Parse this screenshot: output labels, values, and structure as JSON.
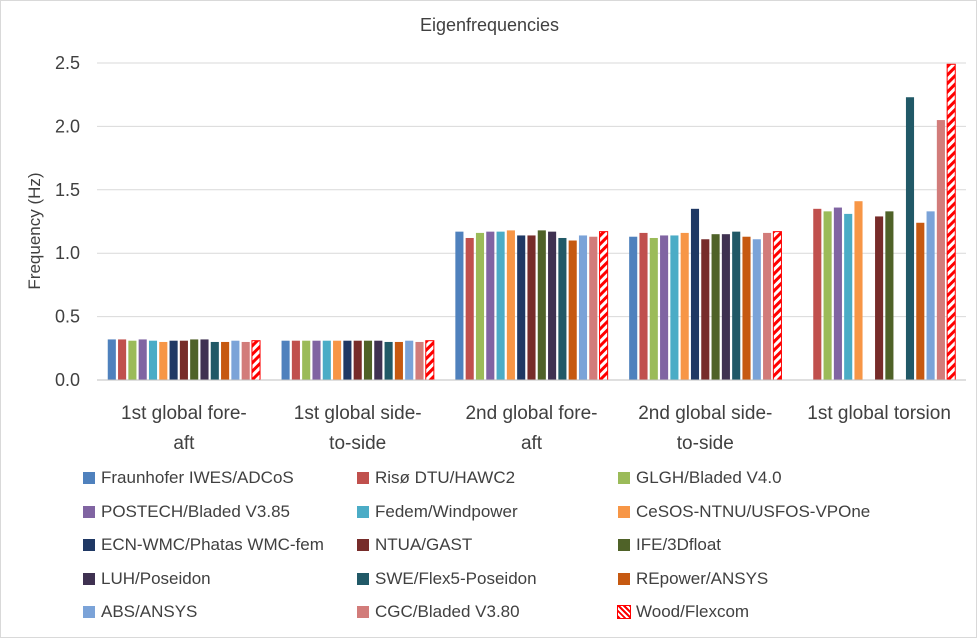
{
  "chart_data": {
    "type": "bar",
    "title": "Eigenfrequencies",
    "ylabel": "Frequency (Hz)",
    "xlabel": "",
    "ylim": [
      0,
      2.5
    ],
    "yticks": [
      "0.0",
      "0.5",
      "1.0",
      "1.5",
      "2.0",
      "2.5"
    ],
    "grid": true,
    "legend_position": "bottom",
    "categories": [
      [
        "1st global fore-",
        "aft"
      ],
      [
        "1st global side-",
        "to-side"
      ],
      [
        "2nd global fore-",
        "aft"
      ],
      [
        "2nd global side-",
        "to-side"
      ],
      [
        "1st global torsion"
      ]
    ],
    "series": [
      {
        "name": "Fraunhofer IWES/ADCoS",
        "color": "#4F81BD",
        "values": [
          0.32,
          0.31,
          1.17,
          1.13,
          null
        ]
      },
      {
        "name": "Risø DTU/HAWC2",
        "color": "#C0504D",
        "values": [
          0.32,
          0.31,
          1.12,
          1.16,
          1.35
        ]
      },
      {
        "name": "GLGH/Bladed V4.0",
        "color": "#9BBB59",
        "values": [
          0.31,
          0.31,
          1.16,
          1.12,
          1.33
        ]
      },
      {
        "name": "POSTECH/Bladed V3.85",
        "color": "#8064A2",
        "values": [
          0.32,
          0.31,
          1.17,
          1.14,
          1.36
        ]
      },
      {
        "name": "Fedem/Windpower",
        "color": "#4BACC6",
        "values": [
          0.31,
          0.31,
          1.17,
          1.14,
          1.31
        ]
      },
      {
        "name": "CeSOS-NTNU/USFOS-VPOne",
        "color": "#F79646",
        "values": [
          0.3,
          0.31,
          1.18,
          1.16,
          1.41
        ]
      },
      {
        "name": "ECN-WMC/Phatas WMC-fem",
        "color": "#1F3864",
        "values": [
          0.31,
          0.31,
          1.14,
          1.35,
          null
        ]
      },
      {
        "name": "NTUA/GAST",
        "color": "#772C2A",
        "values": [
          0.31,
          0.31,
          1.14,
          1.11,
          1.29
        ]
      },
      {
        "name": "IFE/3Dfloat",
        "color": "#4F6228",
        "values": [
          0.32,
          0.31,
          1.18,
          1.15,
          1.33
        ]
      },
      {
        "name": "LUH/Poseidon",
        "color": "#3F3151",
        "values": [
          0.32,
          0.31,
          1.17,
          1.15,
          null
        ]
      },
      {
        "name": "SWE/Flex5-Poseidon",
        "color": "#215967",
        "values": [
          0.3,
          0.3,
          1.12,
          1.17,
          2.23
        ]
      },
      {
        "name": "REpower/ANSYS",
        "color": "#C65911",
        "values": [
          0.3,
          0.3,
          1.1,
          1.13,
          1.24
        ]
      },
      {
        "name": "ABS/ANSYS",
        "color": "#7BA3D8",
        "values": [
          0.31,
          0.31,
          1.14,
          1.11,
          1.33
        ]
      },
      {
        "name": "CGC/Bladed V3.80",
        "color": "#D27C7A",
        "values": [
          0.3,
          0.3,
          1.13,
          1.16,
          2.05
        ]
      },
      {
        "name": "Wood/Flexcom",
        "color": "#FF0000",
        "pattern": "hatched",
        "values": [
          0.31,
          0.31,
          1.17,
          1.17,
          2.49
        ]
      }
    ]
  }
}
